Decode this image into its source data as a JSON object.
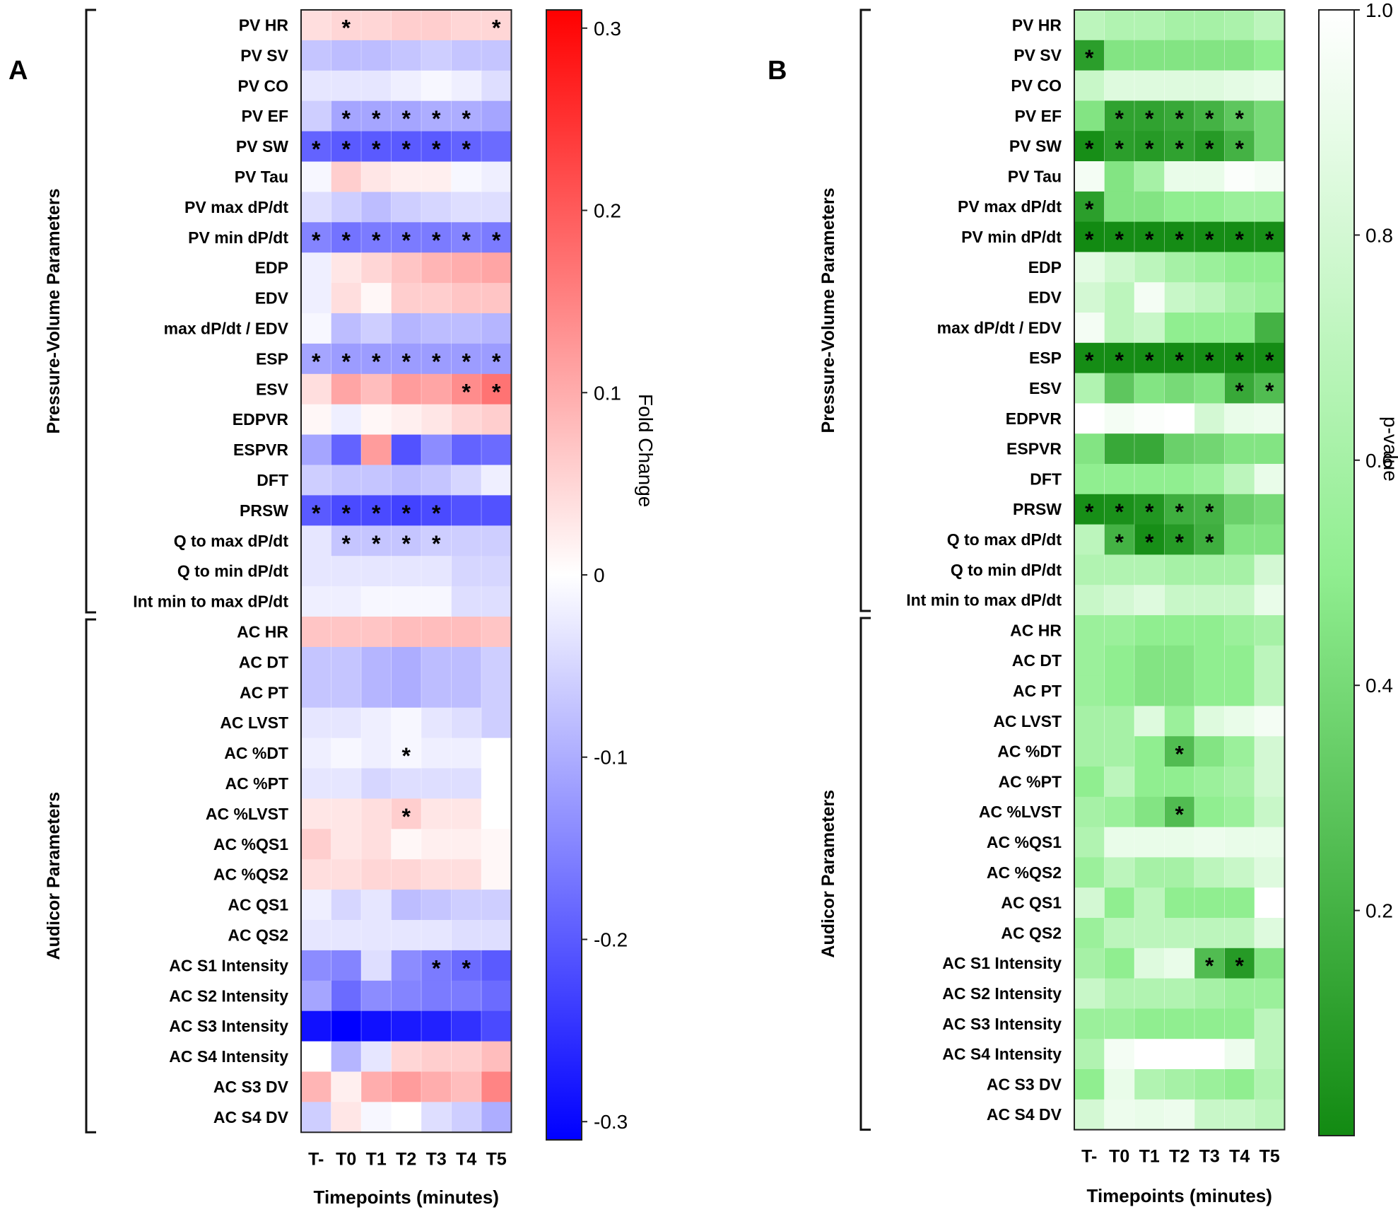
{
  "chart_data": [
    {
      "panel_label": "A",
      "type": "heatmap",
      "title": "",
      "xlabel": "Timepoints (minutes)",
      "categories_x": [
        "T-",
        "T0",
        "T1",
        "T2",
        "T3",
        "T4",
        "T5"
      ],
      "groups": [
        {
          "name": "Pressure-Volume Parameters",
          "rows": [
            "PV HR",
            "PV SV",
            "PV CO",
            "PV EF",
            "PV SW",
            "PV Tau",
            "PV max dP/dt",
            "PV min dP/dt",
            "EDP",
            "EDV",
            "max dP/dt / EDV",
            "ESP",
            "ESV",
            "EDPVR",
            "ESPVR",
            "DFT",
            "PRSW",
            "Q to max dP/dt",
            "Q to min dP/dt",
            "Int min to max dP/dt"
          ]
        },
        {
          "name": "Audicor Parameters",
          "rows": [
            "AC HR",
            "AC DT",
            "AC PT",
            "AC LVST",
            "AC %DT",
            "AC %PT",
            "AC %LVST",
            "AC %QS1",
            "AC %QS2",
            "AC QS1",
            "AC QS2",
            "AC S1 Intensity",
            "AC S2 Intensity",
            "AC S3 Intensity",
            "AC S4 Intensity",
            "AC S3 DV",
            "AC S4 DV"
          ]
        }
      ],
      "values": [
        [
          0.04,
          0.05,
          0.05,
          0.06,
          0.06,
          0.05,
          0.05
        ],
        [
          -0.07,
          -0.08,
          -0.08,
          -0.07,
          -0.06,
          -0.07,
          -0.07
        ],
        [
          -0.03,
          -0.03,
          -0.03,
          -0.02,
          -0.01,
          -0.02,
          -0.04
        ],
        [
          -0.06,
          -0.11,
          -0.11,
          -0.11,
          -0.1,
          -0.1,
          -0.11
        ],
        [
          -0.19,
          -0.2,
          -0.2,
          -0.2,
          -0.2,
          -0.19,
          -0.18
        ],
        [
          -0.01,
          0.06,
          0.03,
          0.02,
          0.02,
          -0.01,
          -0.02
        ],
        [
          -0.04,
          -0.06,
          -0.08,
          -0.06,
          -0.05,
          -0.04,
          -0.04
        ],
        [
          -0.15,
          -0.17,
          -0.16,
          -0.16,
          -0.16,
          -0.15,
          -0.16
        ],
        [
          -0.02,
          0.03,
          0.05,
          0.07,
          0.09,
          0.1,
          0.11
        ],
        [
          -0.02,
          0.04,
          0.01,
          0.06,
          0.06,
          0.07,
          0.07
        ],
        [
          -0.01,
          -0.08,
          -0.06,
          -0.09,
          -0.08,
          -0.08,
          -0.09
        ],
        [
          -0.11,
          -0.12,
          -0.12,
          -0.12,
          -0.12,
          -0.12,
          -0.12
        ],
        [
          0.04,
          0.11,
          0.08,
          0.12,
          0.11,
          0.14,
          0.17
        ],
        [
          0.01,
          -0.02,
          0.01,
          0.02,
          0.03,
          0.05,
          0.06
        ],
        [
          -0.11,
          -0.19,
          0.12,
          -0.21,
          -0.14,
          -0.19,
          -0.18
        ],
        [
          -0.06,
          -0.07,
          -0.07,
          -0.08,
          -0.07,
          -0.05,
          -0.02
        ],
        [
          -0.2,
          -0.22,
          -0.22,
          -0.23,
          -0.22,
          -0.21,
          -0.21
        ],
        [
          -0.03,
          -0.07,
          -0.07,
          -0.07,
          -0.06,
          -0.06,
          -0.06
        ],
        [
          -0.03,
          -0.03,
          -0.03,
          -0.03,
          -0.03,
          -0.05,
          -0.05
        ],
        [
          -0.02,
          -0.02,
          -0.01,
          -0.01,
          -0.01,
          -0.04,
          -0.04
        ],
        [
          0.07,
          0.07,
          0.07,
          0.08,
          0.08,
          0.08,
          0.07
        ],
        [
          -0.07,
          -0.07,
          -0.09,
          -0.1,
          -0.08,
          -0.08,
          -0.06
        ],
        [
          -0.07,
          -0.07,
          -0.09,
          -0.1,
          -0.08,
          -0.08,
          -0.06
        ],
        [
          -0.03,
          -0.03,
          -0.02,
          -0.01,
          -0.03,
          -0.04,
          -0.06
        ],
        [
          -0.02,
          -0.01,
          -0.02,
          -0.01,
          -0.02,
          -0.02,
          0.0
        ],
        [
          -0.03,
          -0.03,
          -0.05,
          -0.04,
          -0.04,
          -0.04,
          0.0
        ],
        [
          0.03,
          0.03,
          0.04,
          0.06,
          0.03,
          0.03,
          0.0
        ],
        [
          0.06,
          0.03,
          0.04,
          0.01,
          0.02,
          0.02,
          0.01
        ],
        [
          0.04,
          0.04,
          0.05,
          0.05,
          0.04,
          0.04,
          0.01
        ],
        [
          -0.02,
          -0.05,
          -0.03,
          -0.08,
          -0.07,
          -0.06,
          -0.06
        ],
        [
          -0.03,
          -0.03,
          -0.03,
          -0.03,
          -0.03,
          -0.04,
          -0.04
        ],
        [
          -0.14,
          -0.15,
          -0.04,
          -0.14,
          -0.16,
          -0.18,
          -0.2
        ],
        [
          -0.11,
          -0.18,
          -0.14,
          -0.15,
          -0.16,
          -0.16,
          -0.18
        ],
        [
          -0.29,
          -0.31,
          -0.29,
          -0.28,
          -0.27,
          -0.25,
          -0.22
        ],
        [
          0.0,
          -0.09,
          -0.03,
          0.05,
          0.06,
          0.06,
          0.08
        ],
        [
          0.09,
          0.02,
          0.1,
          0.12,
          0.1,
          0.08,
          0.15
        ],
        [
          -0.06,
          0.03,
          -0.01,
          0.0,
          -0.04,
          -0.06,
          -0.1
        ]
      ],
      "significant": [
        [
          0,
          1
        ],
        [
          0,
          6
        ],
        [
          3,
          1
        ],
        [
          3,
          2
        ],
        [
          3,
          3
        ],
        [
          3,
          4
        ],
        [
          3,
          5
        ],
        [
          4,
          0
        ],
        [
          4,
          1
        ],
        [
          4,
          2
        ],
        [
          4,
          3
        ],
        [
          4,
          4
        ],
        [
          4,
          5
        ],
        [
          7,
          0
        ],
        [
          7,
          1
        ],
        [
          7,
          2
        ],
        [
          7,
          3
        ],
        [
          7,
          4
        ],
        [
          7,
          5
        ],
        [
          7,
          6
        ],
        [
          11,
          0
        ],
        [
          11,
          1
        ],
        [
          11,
          2
        ],
        [
          11,
          3
        ],
        [
          11,
          4
        ],
        [
          11,
          5
        ],
        [
          11,
          6
        ],
        [
          12,
          5
        ],
        [
          12,
          6
        ],
        [
          16,
          0
        ],
        [
          16,
          1
        ],
        [
          16,
          2
        ],
        [
          16,
          3
        ],
        [
          16,
          4
        ],
        [
          17,
          1
        ],
        [
          17,
          2
        ],
        [
          17,
          3
        ],
        [
          17,
          4
        ],
        [
          24,
          3
        ],
        [
          26,
          3
        ],
        [
          31,
          4
        ],
        [
          31,
          5
        ]
      ],
      "marker": "*",
      "colorbar": {
        "label": "Fold Change",
        "range": [
          -0.31,
          0.31
        ],
        "ticks": [
          "0.3",
          "0.2",
          "0.1",
          "0",
          "-0.1",
          "-0.2",
          "-0.3"
        ],
        "tick_values": [
          0.3,
          0.2,
          0.1,
          0,
          -0.1,
          -0.2,
          -0.3
        ],
        "low_color": "#0000ff",
        "mid_color": "#ffffff",
        "high_color": "#ff0000"
      }
    },
    {
      "panel_label": "B",
      "type": "heatmap",
      "title": "",
      "xlabel": "Timepoints (minutes)",
      "categories_x": [
        "T-",
        "T0",
        "T1",
        "T2",
        "T3",
        "T4",
        "T5"
      ],
      "groups": [
        {
          "name": "Pressure-Volume Parameters",
          "rows": [
            "PV HR",
            "PV SV",
            "PV CO",
            "PV EF",
            "PV SW",
            "PV Tau",
            "PV max dP/dt",
            "PV min dP/dt",
            "EDP",
            "EDV",
            "max dP/dt / EDV",
            "ESP",
            "ESV",
            "EDPVR",
            "ESPVR",
            "DFT",
            "PRSW",
            "Q to max dP/dt",
            "Q to min dP/dt",
            "Int min to max dP/dt"
          ]
        },
        {
          "name": "Audicor Parameters",
          "rows": [
            "AC HR",
            "AC DT",
            "AC PT",
            "AC LVST",
            "AC %DT",
            "AC %PT",
            "AC %LVST",
            "AC %QS1",
            "AC %QS2",
            "AC QS1",
            "AC QS2",
            "AC S1 Intensity",
            "AC S2 Intensity",
            "AC S3 Intensity",
            "AC S4 Intensity",
            "AC S3 DV",
            "AC S4 DV"
          ]
        }
      ],
      "values": [
        [
          0.7,
          0.65,
          0.65,
          0.6,
          0.6,
          0.62,
          0.7
        ],
        [
          0.1,
          0.45,
          0.45,
          0.45,
          0.45,
          0.45,
          0.5
        ],
        [
          0.75,
          0.85,
          0.85,
          0.85,
          0.85,
          0.88,
          0.9
        ],
        [
          0.45,
          0.12,
          0.12,
          0.15,
          0.2,
          0.3,
          0.4
        ],
        [
          0.02,
          0.1,
          0.08,
          0.12,
          0.08,
          0.2,
          0.4
        ],
        [
          0.95,
          0.45,
          0.6,
          0.9,
          0.9,
          0.98,
          0.95
        ],
        [
          0.1,
          0.45,
          0.45,
          0.5,
          0.5,
          0.55,
          0.55
        ],
        [
          0.0,
          0.01,
          0.01,
          0.01,
          0.01,
          0.01,
          0.02
        ],
        [
          0.88,
          0.78,
          0.7,
          0.6,
          0.55,
          0.5,
          0.5
        ],
        [
          0.8,
          0.7,
          0.95,
          0.75,
          0.7,
          0.6,
          0.55
        ],
        [
          0.95,
          0.7,
          0.75,
          0.5,
          0.5,
          0.5,
          0.2
        ],
        [
          0.01,
          0.01,
          0.01,
          0.01,
          0.01,
          0.01,
          0.01
        ],
        [
          0.65,
          0.3,
          0.45,
          0.4,
          0.45,
          0.15,
          0.25
        ],
        [
          1.0,
          0.95,
          0.98,
          1.0,
          0.8,
          0.9,
          0.92
        ],
        [
          0.45,
          0.15,
          0.15,
          0.35,
          0.38,
          0.45,
          0.45
        ],
        [
          0.5,
          0.5,
          0.5,
          0.5,
          0.55,
          0.7,
          0.9
        ],
        [
          0.02,
          0.03,
          0.06,
          0.18,
          0.2,
          0.35,
          0.4
        ],
        [
          0.7,
          0.2,
          0.02,
          0.08,
          0.18,
          0.45,
          0.45
        ],
        [
          0.65,
          0.65,
          0.65,
          0.6,
          0.6,
          0.6,
          0.8
        ],
        [
          0.75,
          0.8,
          0.85,
          0.75,
          0.75,
          0.75,
          0.9
        ],
        [
          0.55,
          0.55,
          0.5,
          0.5,
          0.5,
          0.55,
          0.6
        ],
        [
          0.55,
          0.5,
          0.45,
          0.45,
          0.5,
          0.5,
          0.7
        ],
        [
          0.55,
          0.5,
          0.45,
          0.45,
          0.5,
          0.5,
          0.7
        ],
        [
          0.6,
          0.6,
          0.85,
          0.55,
          0.85,
          0.9,
          0.95
        ],
        [
          0.6,
          0.6,
          0.5,
          0.25,
          0.45,
          0.55,
          0.8
        ],
        [
          0.5,
          0.7,
          0.5,
          0.5,
          0.55,
          0.6,
          0.8
        ],
        [
          0.6,
          0.55,
          0.45,
          0.25,
          0.5,
          0.55,
          0.75
        ],
        [
          0.65,
          0.9,
          0.9,
          0.9,
          0.92,
          0.9,
          0.9
        ],
        [
          0.55,
          0.7,
          0.6,
          0.6,
          0.7,
          0.75,
          0.85
        ],
        [
          0.8,
          0.5,
          0.7,
          0.5,
          0.5,
          0.5,
          1.0
        ],
        [
          0.55,
          0.7,
          0.7,
          0.7,
          0.7,
          0.7,
          0.85
        ],
        [
          0.6,
          0.5,
          0.85,
          0.9,
          0.25,
          0.08,
          0.45
        ],
        [
          0.75,
          0.65,
          0.65,
          0.65,
          0.6,
          0.55,
          0.55
        ],
        [
          0.55,
          0.55,
          0.5,
          0.5,
          0.5,
          0.5,
          0.7
        ],
        [
          0.65,
          0.95,
          1.0,
          1.0,
          1.0,
          0.92,
          0.7
        ],
        [
          0.5,
          0.9,
          0.65,
          0.6,
          0.55,
          0.5,
          0.65
        ],
        [
          0.8,
          0.92,
          0.9,
          0.92,
          0.75,
          0.75,
          0.7
        ]
      ],
      "significant": [
        [
          1,
          0
        ],
        [
          3,
          1
        ],
        [
          3,
          2
        ],
        [
          3,
          3
        ],
        [
          3,
          4
        ],
        [
          3,
          5
        ],
        [
          4,
          0
        ],
        [
          4,
          1
        ],
        [
          4,
          2
        ],
        [
          4,
          3
        ],
        [
          4,
          4
        ],
        [
          4,
          5
        ],
        [
          6,
          0
        ],
        [
          7,
          0
        ],
        [
          7,
          1
        ],
        [
          7,
          2
        ],
        [
          7,
          3
        ],
        [
          7,
          4
        ],
        [
          7,
          5
        ],
        [
          7,
          6
        ],
        [
          11,
          0
        ],
        [
          11,
          1
        ],
        [
          11,
          2
        ],
        [
          11,
          3
        ],
        [
          11,
          4
        ],
        [
          11,
          5
        ],
        [
          11,
          6
        ],
        [
          12,
          5
        ],
        [
          12,
          6
        ],
        [
          16,
          0
        ],
        [
          16,
          1
        ],
        [
          16,
          2
        ],
        [
          16,
          3
        ],
        [
          16,
          4
        ],
        [
          17,
          1
        ],
        [
          17,
          2
        ],
        [
          17,
          3
        ],
        [
          17,
          4
        ],
        [
          24,
          3
        ],
        [
          26,
          3
        ],
        [
          31,
          4
        ],
        [
          31,
          5
        ]
      ],
      "marker": "*",
      "colorbar": {
        "label": "p-value",
        "range": [
          0,
          1.0
        ],
        "ticks": [
          "1.0",
          "0.8",
          "0.6",
          "0.4",
          "0.2"
        ],
        "tick_values": [
          1.0,
          0.8,
          0.6,
          0.4,
          0.2
        ],
        "low_color": "#128a12",
        "mid_color": "#90ee90",
        "high_color": "#ffffff"
      }
    }
  ]
}
